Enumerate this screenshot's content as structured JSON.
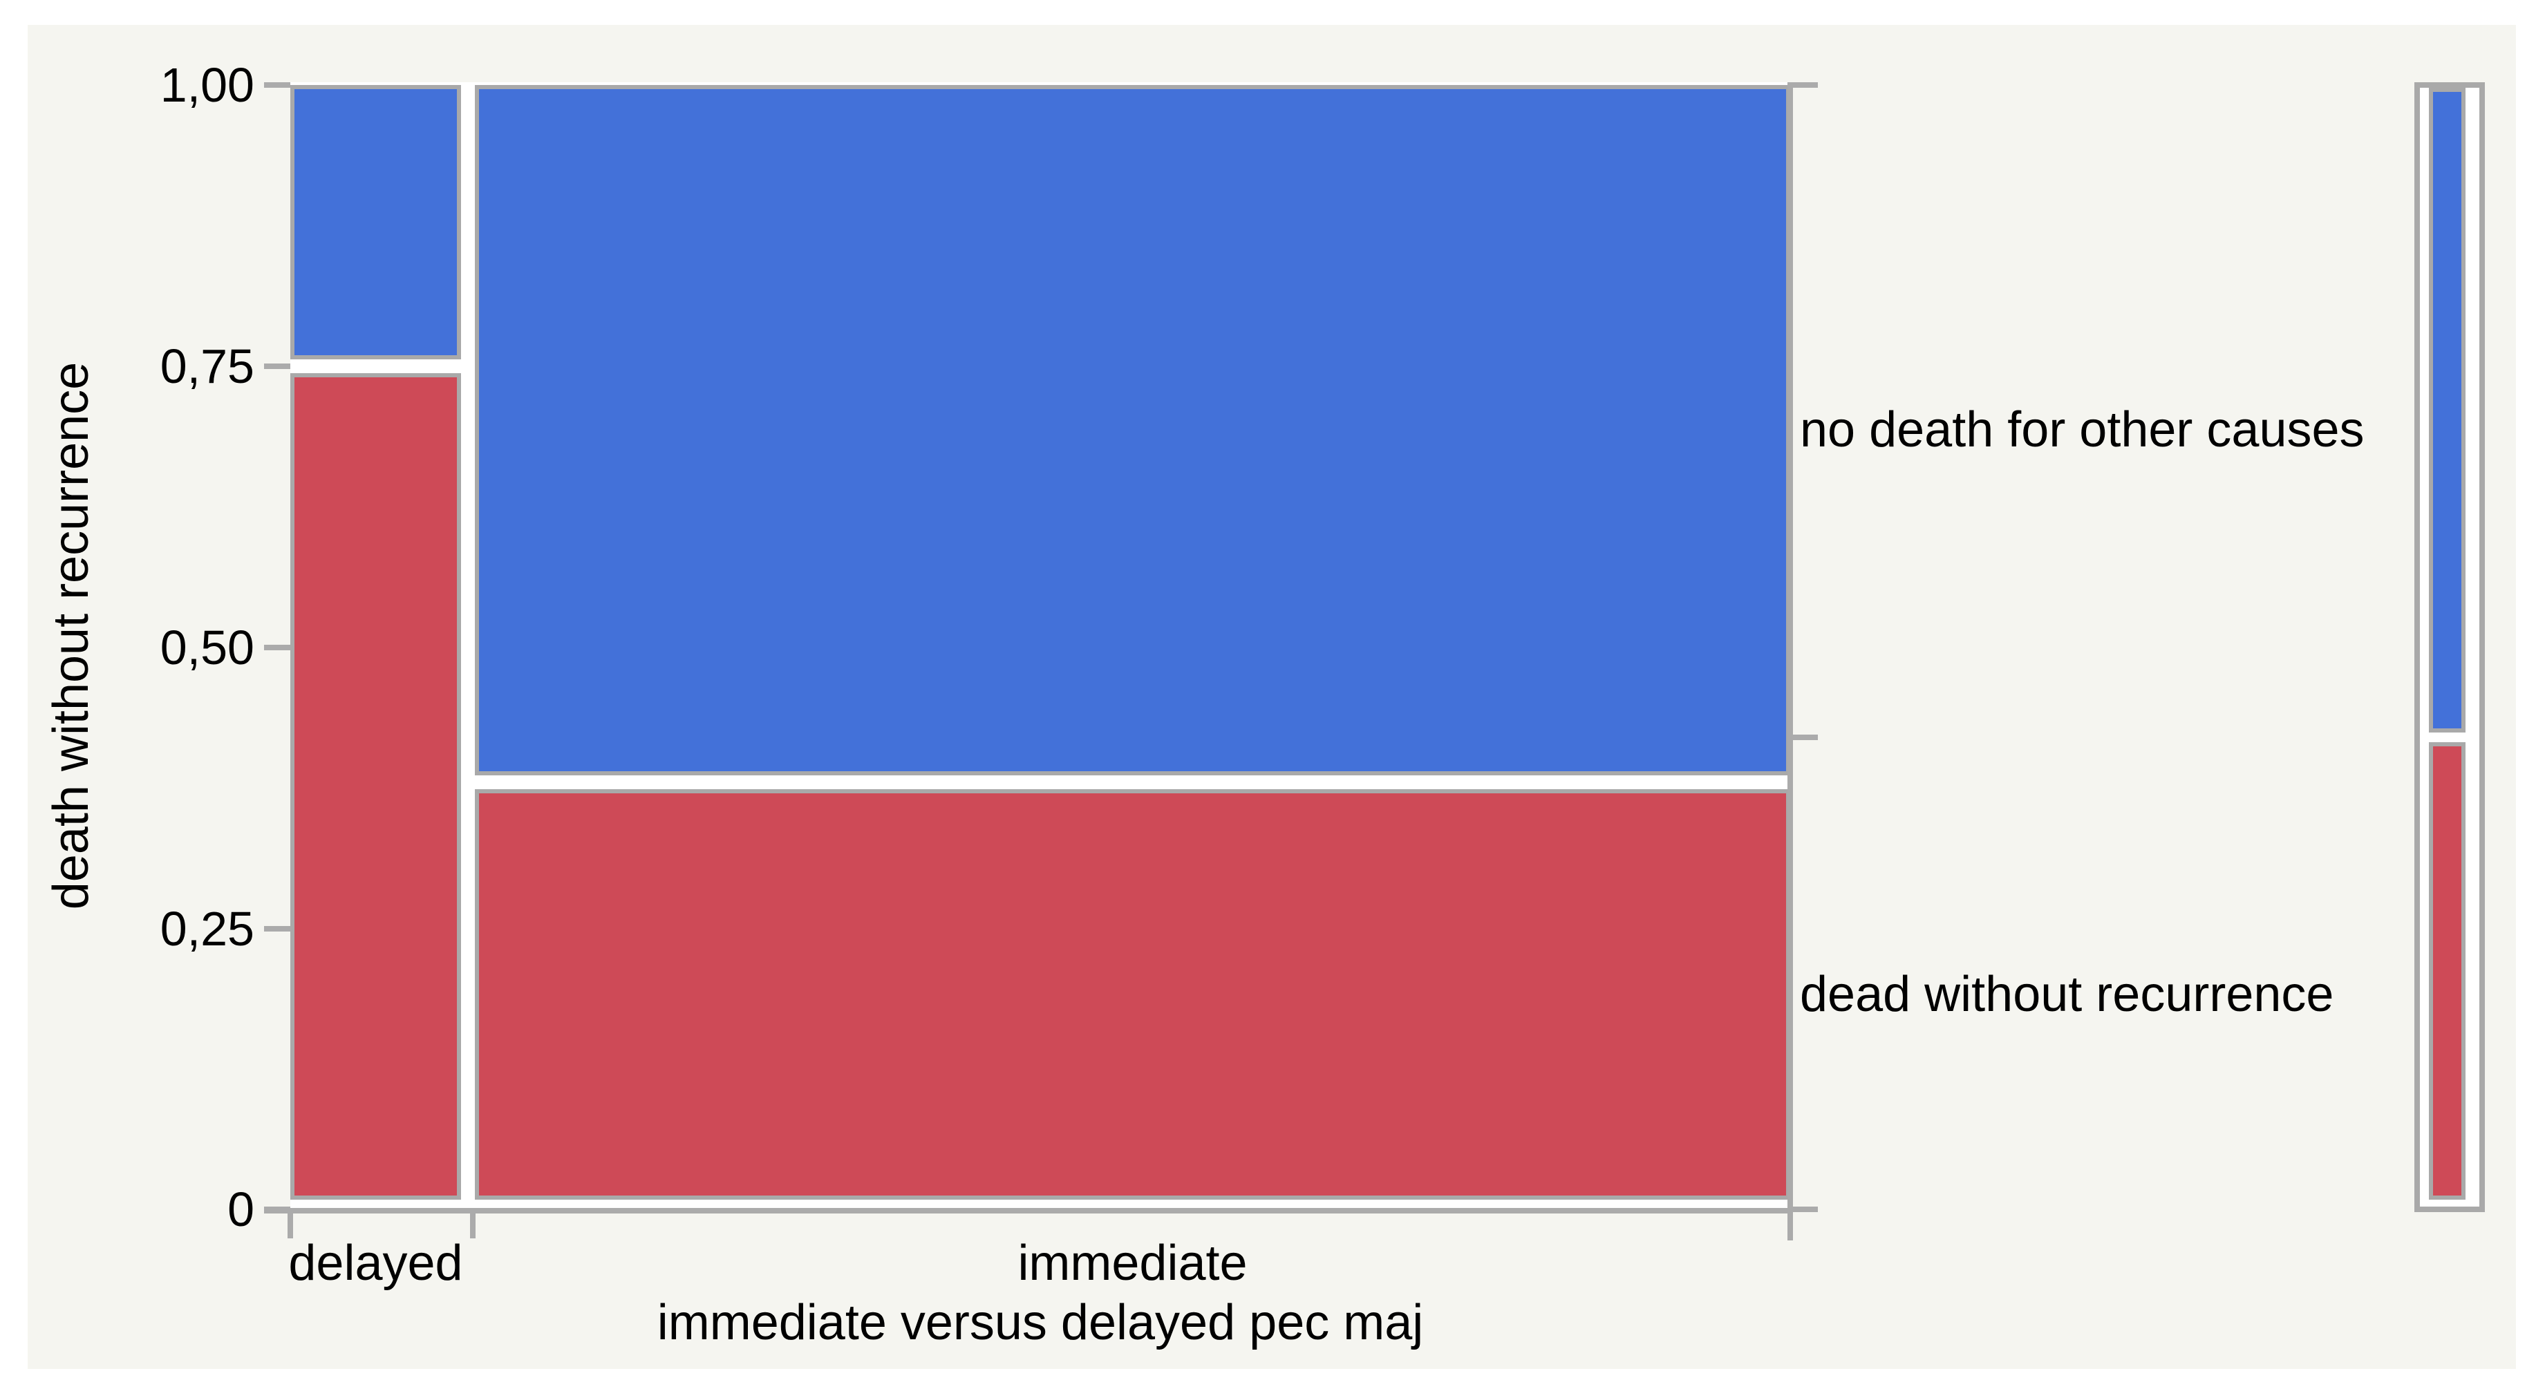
{
  "page": {
    "background": "#ffffff",
    "panel_background": "#f5f5f0"
  },
  "chart_data": {
    "type": "mosaic",
    "title": "",
    "xlabel": "immediate versus delayed pec maj",
    "ylabel": "death without recurrence",
    "ylim": [
      0,
      1
    ],
    "grid": false,
    "legend_position": "right-margin-overall-bar",
    "y_ticks": [
      {
        "label": "1,00",
        "value": 1.0
      },
      {
        "label": "0,75",
        "value": 0.75
      },
      {
        "label": "0,50",
        "value": 0.5
      },
      {
        "label": "0,25",
        "value": 0.25
      },
      {
        "label": "0",
        "value": 0.0
      }
    ],
    "segment_labels": [
      "no death for other causes",
      "dead without recurrence"
    ],
    "x_categories": [
      {
        "label": "delayed",
        "width_share": 0.115,
        "segments": {
          "no death for other causes": 0.25,
          "dead without recurrence": 0.75
        }
      },
      {
        "label": "immediate",
        "width_share": 0.885,
        "segments": {
          "no death for other causes": 0.62,
          "dead without recurrence": 0.38
        }
      }
    ],
    "overall": {
      "no death for other causes": 0.58,
      "dead without recurrence": 0.42
    },
    "colors": {
      "no death for other causes": "#4371D9",
      "dead without recurrence": "#CE4A57",
      "frame": "#A9A9A9",
      "axis": "#ABABAB"
    }
  }
}
